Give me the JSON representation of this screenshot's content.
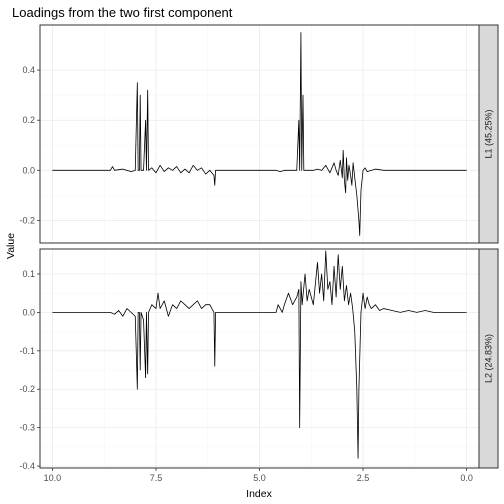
{
  "chart_data": {
    "type": "line",
    "title": "Loadings from the two first component",
    "xlabel": "Index",
    "ylabel": "Value",
    "x_reversed": true,
    "xlim": [
      10.3,
      -0.3
    ],
    "x_ticks": [
      10.0,
      7.5,
      5.0,
      2.5,
      0.0
    ],
    "x_tick_labels": [
      "10.0",
      "7.5",
      "5.0",
      "2.5",
      "0.0"
    ],
    "panels": [
      {
        "strip": "L1 (45.25%)",
        "ylim": [
          -0.29,
          0.58
        ],
        "y_ticks": [
          -0.2,
          0.0,
          0.2,
          0.4
        ],
        "y_tick_labels": [
          "-0.2",
          "0.0",
          "0.2",
          "0.4"
        ],
        "points": [
          [
            10.0,
            0.0
          ],
          [
            9.0,
            0.0
          ],
          [
            8.6,
            0.0
          ],
          [
            8.55,
            0.015
          ],
          [
            8.5,
            0.0
          ],
          [
            8.3,
            0.005
          ],
          [
            8.1,
            -0.005
          ],
          [
            8.0,
            0.0
          ],
          [
            7.95,
            0.35
          ],
          [
            7.93,
            0.0
          ],
          [
            7.9,
            0.0
          ],
          [
            7.88,
            0.3
          ],
          [
            7.86,
            0.0
          ],
          [
            7.8,
            0.0
          ],
          [
            7.75,
            0.2
          ],
          [
            7.73,
            0.0
          ],
          [
            7.7,
            0.32
          ],
          [
            7.68,
            0.0
          ],
          [
            7.6,
            0.01
          ],
          [
            7.5,
            -0.01
          ],
          [
            7.4,
            0.02
          ],
          [
            7.3,
            -0.005
          ],
          [
            7.2,
            0.01
          ],
          [
            7.1,
            0.0
          ],
          [
            7.0,
            0.015
          ],
          [
            6.9,
            -0.01
          ],
          [
            6.8,
            0.005
          ],
          [
            6.7,
            -0.01
          ],
          [
            6.6,
            0.02
          ],
          [
            6.5,
            0.0
          ],
          [
            6.4,
            0.01
          ],
          [
            6.3,
            -0.015
          ],
          [
            6.2,
            0.0
          ],
          [
            6.1,
            -0.02
          ],
          [
            6.08,
            -0.06
          ],
          [
            6.06,
            0.0
          ],
          [
            6.0,
            0.0
          ],
          [
            5.5,
            0.0
          ],
          [
            5.0,
            0.0
          ],
          [
            4.6,
            0.0
          ],
          [
            4.5,
            -0.005
          ],
          [
            4.4,
            0.0
          ],
          [
            4.3,
            0.0
          ],
          [
            4.2,
            0.0
          ],
          [
            4.1,
            0.0
          ],
          [
            4.05,
            0.2
          ],
          [
            4.03,
            0.0
          ],
          [
            4.0,
            0.55
          ],
          [
            3.98,
            0.0
          ],
          [
            3.95,
            0.3
          ],
          [
            3.93,
            0.0
          ],
          [
            3.85,
            0.0
          ],
          [
            3.8,
            0.0
          ],
          [
            3.7,
            0.0
          ],
          [
            3.6,
            0.005
          ],
          [
            3.5,
            0.0
          ],
          [
            3.4,
            0.02
          ],
          [
            3.3,
            -0.01
          ],
          [
            3.2,
            0.03
          ],
          [
            3.15,
            0.0
          ],
          [
            3.1,
            -0.02
          ],
          [
            3.05,
            0.04
          ],
          [
            3.0,
            -0.03
          ],
          [
            2.98,
            0.08
          ],
          [
            2.95,
            -0.04
          ],
          [
            2.92,
            -0.09
          ],
          [
            2.9,
            0.05
          ],
          [
            2.87,
            -0.04
          ],
          [
            2.84,
            0.02
          ],
          [
            2.8,
            -0.02
          ],
          [
            2.77,
            -0.06
          ],
          [
            2.74,
            0.03
          ],
          [
            2.7,
            -0.03
          ],
          [
            2.65,
            -0.1
          ],
          [
            2.6,
            -0.2
          ],
          [
            2.58,
            -0.26
          ],
          [
            2.55,
            -0.08
          ],
          [
            2.5,
            0.0
          ],
          [
            2.45,
            0.01
          ],
          [
            2.4,
            -0.005
          ],
          [
            2.3,
            0.0
          ],
          [
            2.2,
            0.005
          ],
          [
            2.0,
            0.0
          ],
          [
            1.5,
            0.0
          ],
          [
            1.0,
            0.0
          ],
          [
            0.5,
            0.0
          ],
          [
            0.0,
            0.0
          ]
        ]
      },
      {
        "strip": "L2 (24.83%)",
        "ylim": [
          -0.405,
          0.165
        ],
        "y_ticks": [
          -0.4,
          -0.3,
          -0.2,
          -0.1,
          0.0,
          0.1
        ],
        "y_tick_labels": [
          "-0.4",
          "-0.3",
          "-0.2",
          "-0.1",
          "0.0",
          "0.1"
        ],
        "points": [
          [
            10.0,
            0.0
          ],
          [
            9.0,
            0.0
          ],
          [
            8.6,
            0.0
          ],
          [
            8.5,
            -0.005
          ],
          [
            8.4,
            0.005
          ],
          [
            8.3,
            -0.01
          ],
          [
            8.2,
            0.01
          ],
          [
            8.1,
            0.0
          ],
          [
            8.0,
            -0.01
          ],
          [
            7.95,
            -0.2
          ],
          [
            7.93,
            0.0
          ],
          [
            7.9,
            0.0
          ],
          [
            7.88,
            -0.15
          ],
          [
            7.86,
            0.0
          ],
          [
            7.8,
            -0.02
          ],
          [
            7.75,
            -0.17
          ],
          [
            7.73,
            0.0
          ],
          [
            7.7,
            -0.16
          ],
          [
            7.68,
            0.0
          ],
          [
            7.6,
            0.02
          ],
          [
            7.5,
            0.01
          ],
          [
            7.45,
            0.05
          ],
          [
            7.4,
            0.01
          ],
          [
            7.3,
            0.03
          ],
          [
            7.2,
            -0.01
          ],
          [
            7.1,
            0.02
          ],
          [
            7.0,
            0.01
          ],
          [
            6.9,
            0.03
          ],
          [
            6.8,
            0.02
          ],
          [
            6.7,
            0.01
          ],
          [
            6.6,
            0.02
          ],
          [
            6.5,
            0.03
          ],
          [
            6.4,
            0.01
          ],
          [
            6.3,
            0.02
          ],
          [
            6.2,
            0.02
          ],
          [
            6.1,
            0.0
          ],
          [
            6.08,
            -0.14
          ],
          [
            6.06,
            0.0
          ],
          [
            6.0,
            0.0
          ],
          [
            5.5,
            0.0
          ],
          [
            5.0,
            0.0
          ],
          [
            4.6,
            0.0
          ],
          [
            4.55,
            0.02
          ],
          [
            4.5,
            0.01
          ],
          [
            4.45,
            0.0
          ],
          [
            4.4,
            0.02
          ],
          [
            4.3,
            0.05
          ],
          [
            4.2,
            0.02
          ],
          [
            4.1,
            0.04
          ],
          [
            4.05,
            0.06
          ],
          [
            4.03,
            -0.3
          ],
          [
            4.0,
            0.08
          ],
          [
            3.97,
            0.02
          ],
          [
            3.9,
            0.1
          ],
          [
            3.85,
            0.03
          ],
          [
            3.8,
            0.06
          ],
          [
            3.7,
            0.02
          ],
          [
            3.6,
            0.13
          ],
          [
            3.55,
            0.05
          ],
          [
            3.5,
            0.1
          ],
          [
            3.45,
            0.03
          ],
          [
            3.4,
            0.16
          ],
          [
            3.35,
            0.06
          ],
          [
            3.3,
            0.08
          ],
          [
            3.25,
            0.02
          ],
          [
            3.2,
            0.12
          ],
          [
            3.15,
            0.04
          ],
          [
            3.1,
            0.15
          ],
          [
            3.05,
            0.06
          ],
          [
            3.0,
            0.12
          ],
          [
            2.95,
            0.03
          ],
          [
            2.9,
            0.07
          ],
          [
            2.85,
            0.02
          ],
          [
            2.8,
            0.05
          ],
          [
            2.75,
            0.01
          ],
          [
            2.7,
            -0.05
          ],
          [
            2.65,
            -0.2
          ],
          [
            2.62,
            -0.38
          ],
          [
            2.6,
            -0.2
          ],
          [
            2.55,
            0.0
          ],
          [
            2.5,
            0.05
          ],
          [
            2.45,
            0.01
          ],
          [
            2.4,
            0.04
          ],
          [
            2.35,
            0.02
          ],
          [
            2.3,
            0.01
          ],
          [
            2.2,
            0.02
          ],
          [
            2.1,
            0.005
          ],
          [
            2.0,
            0.01
          ],
          [
            1.8,
            0.005
          ],
          [
            1.6,
            0.0
          ],
          [
            1.4,
            0.005
          ],
          [
            1.2,
            0.0
          ],
          [
            1.0,
            0.005
          ],
          [
            0.8,
            0.0
          ],
          [
            0.5,
            0.0
          ],
          [
            0.0,
            0.0
          ]
        ]
      }
    ],
    "grid": true,
    "legend": "none"
  }
}
